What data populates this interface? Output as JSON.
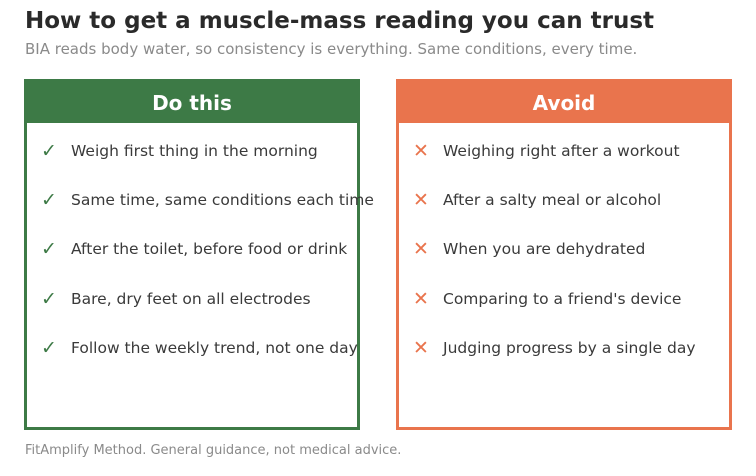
{
  "header": {
    "title": "How to get a muscle-mass reading you can trust",
    "subtitle": "BIA reads body water, so consistency is everything. Same conditions, every time."
  },
  "do_panel": {
    "heading": "Do this",
    "icon": "check-icon",
    "color": "#3d7a46",
    "items": [
      {
        "mark": "✓",
        "text": "Weigh first thing in the morning"
      },
      {
        "mark": "✓",
        "text": "Same time, same conditions each time"
      },
      {
        "mark": "✓",
        "text": "After the toilet, before food or drink"
      },
      {
        "mark": "✓",
        "text": "Bare, dry feet on all electrodes"
      },
      {
        "mark": "✓",
        "text": "Follow the weekly trend, not one day"
      }
    ]
  },
  "avoid_panel": {
    "heading": "Avoid",
    "icon": "cross-icon",
    "color": "#e9744d",
    "items": [
      {
        "mark": "✕",
        "text": "Weighing right after a workout"
      },
      {
        "mark": "✕",
        "text": "After a salty meal or alcohol"
      },
      {
        "mark": "✕",
        "text": "When you are dehydrated"
      },
      {
        "mark": "✕",
        "text": "Comparing to a friend's device"
      },
      {
        "mark": "✕",
        "text": "Judging progress by a single day"
      }
    ]
  },
  "footer": {
    "note": "FitAmplify Method. General guidance, not medical advice."
  }
}
